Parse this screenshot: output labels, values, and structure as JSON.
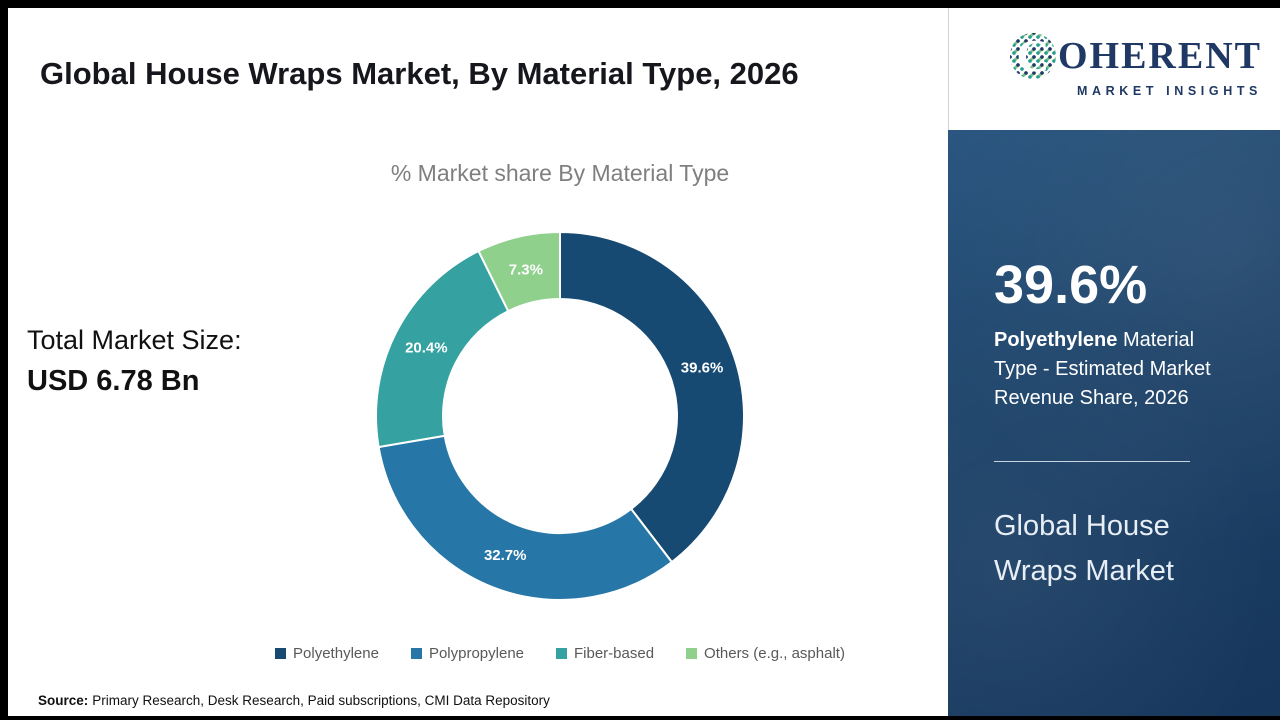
{
  "page": {
    "title": "Global House Wraps Market, By Material Type, 2026",
    "source_label": "Source:",
    "source_text": "Primary Research, Desk Research, Paid subscriptions, CMI Data Repository"
  },
  "left_stats": {
    "market_size_label": "Total Market Size:",
    "market_size_value": "USD 6.78 Bn"
  },
  "chart_data": {
    "type": "pie",
    "donut": true,
    "title": "% Market share By Material Type",
    "categories": [
      "Polyethylene",
      "Polypropylene",
      "Fiber-based",
      "Others (e.g., asphalt)"
    ],
    "values": [
      39.6,
      32.7,
      20.4,
      7.3
    ],
    "data_labels": [
      "39.6%",
      "32.7%",
      "20.4%",
      "7.3%"
    ],
    "colors": [
      "#174a73",
      "#2677a8",
      "#35a1a1",
      "#8fd08c"
    ],
    "start_angle_deg": 0,
    "direction": "clockwise",
    "legend_position": "bottom"
  },
  "sidebar": {
    "logo": {
      "first_letter": "C",
      "brand_rest": "OHERENT",
      "tagline": "MARKET INSIGHTS"
    },
    "stat_value": "39.6%",
    "stat_highlight": "Polyethylene",
    "stat_rest": " Material Type - Estimated Market Revenue Share, 2026",
    "panel_title": "Global House Wraps Market",
    "panel_color": "#1d4268"
  }
}
